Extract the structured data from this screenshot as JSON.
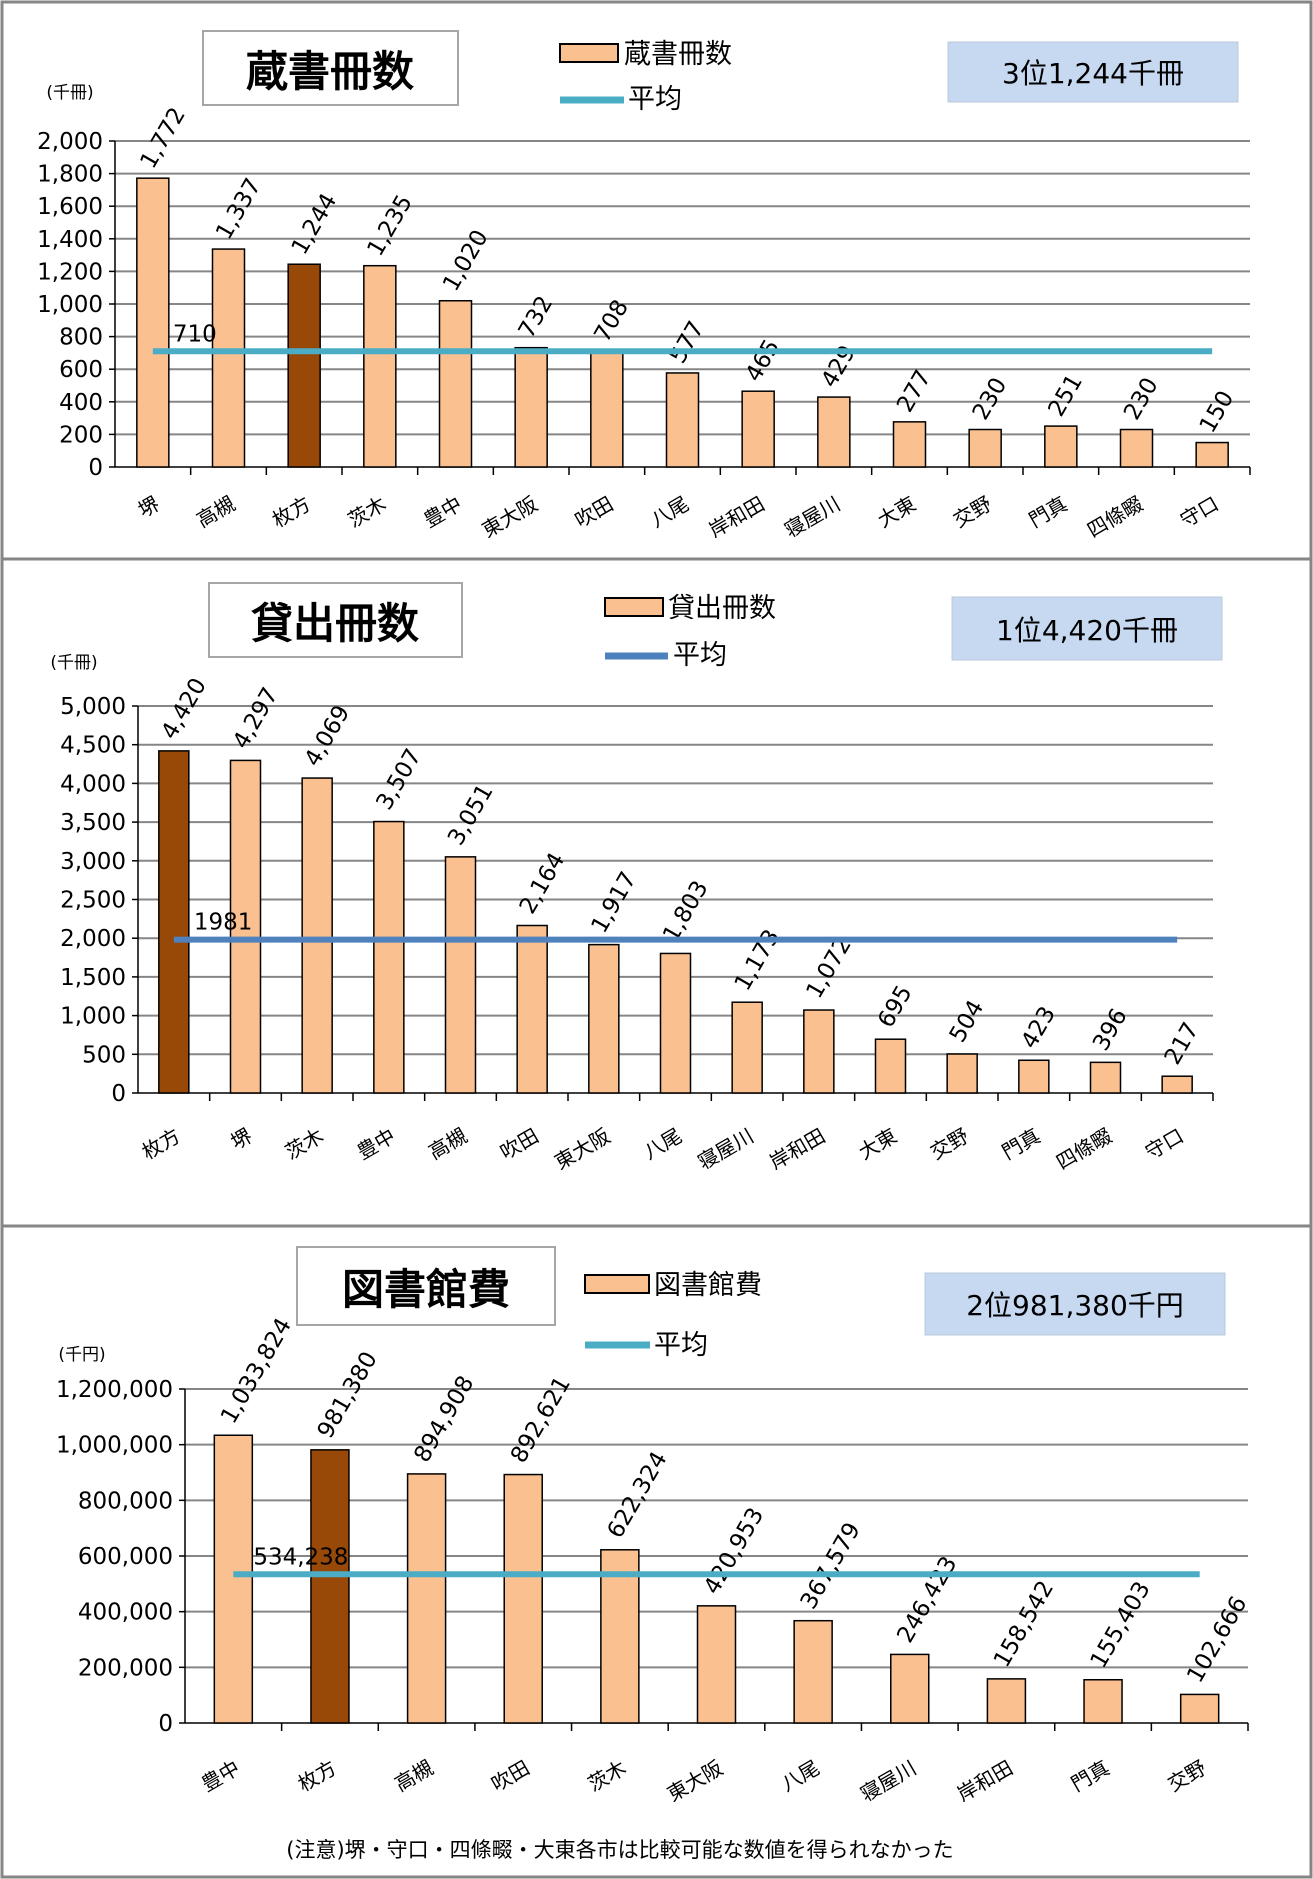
{
  "chart_data": [
    {
      "type": "bar",
      "title": "蔵書冊数",
      "unit": "(千冊)",
      "legend": {
        "bar": "蔵書冊数",
        "line": "平均"
      },
      "rank_badge": "3位1,244千冊",
      "categories": [
        "堺",
        "高槻",
        "枚方",
        "茨木",
        "豊中",
        "東大阪",
        "吹田",
        "八尾",
        "岸和田",
        "寝屋川",
        "大東",
        "交野",
        "門真",
        "四條畷",
        "守口"
      ],
      "values": [
        1772,
        1337,
        1244,
        1235,
        1020,
        732,
        708,
        577,
        465,
        429,
        277,
        230,
        251,
        230,
        150
      ],
      "value_labels": [
        "1,772",
        "1,337",
        "1,244",
        "1,235",
        "1,020",
        "732",
        "708",
        "577",
        "465",
        "429",
        "277",
        "230",
        "251",
        "230",
        "150"
      ],
      "average": 710,
      "average_label": "710",
      "highlight_index": 2,
      "ylim": [
        0,
        2000
      ],
      "yticks": [
        "0",
        "200",
        "400",
        "600",
        "800",
        "1,000",
        "1,200",
        "1,400",
        "1,600",
        "1,800",
        "2,000"
      ],
      "colors": {
        "bar": "#FAC090",
        "highlight": "#984807",
        "line": "#4BACC6",
        "badge": "#C6D9F1",
        "grid": "#868686"
      }
    },
    {
      "type": "bar",
      "title": "貸出冊数",
      "unit": "(千冊)",
      "legend": {
        "bar": "貸出冊数",
        "line": "平均"
      },
      "rank_badge": "1位4,420千冊",
      "categories": [
        "枚方",
        "堺",
        "茨木",
        "豊中",
        "高槻",
        "吹田",
        "東大阪",
        "八尾",
        "寝屋川",
        "岸和田",
        "大東",
        "交野",
        "門真",
        "四條畷",
        "守口"
      ],
      "values": [
        4420,
        4297,
        4069,
        3507,
        3051,
        2164,
        1917,
        1803,
        1173,
        1072,
        695,
        504,
        423,
        396,
        217
      ],
      "value_labels": [
        "4,420",
        "4,297",
        "4,069",
        "3,507",
        "3,051",
        "2,164",
        "1,917",
        "1,803",
        "1,173",
        "1,072",
        "695",
        "504",
        "423",
        "396",
        "217"
      ],
      "average": 1981,
      "average_label": "1981",
      "highlight_index": 0,
      "ylim": [
        0,
        5000
      ],
      "yticks": [
        "0",
        "500",
        "1,000",
        "1,500",
        "2,000",
        "2,500",
        "3,000",
        "3,500",
        "4,000",
        "4,500",
        "5,000"
      ],
      "colors": {
        "bar": "#FAC090",
        "highlight": "#984807",
        "line": "#4F81BD",
        "badge": "#C6D9F1",
        "grid": "#868686"
      }
    },
    {
      "type": "bar",
      "title": "図書館費",
      "unit": "(千円)",
      "legend": {
        "bar": "図書館費",
        "line": "平均"
      },
      "rank_badge": "2位981,380千円",
      "categories": [
        "豊中",
        "枚方",
        "高槻",
        "吹田",
        "茨木",
        "東大阪",
        "八尾",
        "寝屋川",
        "岸和田",
        "門真",
        "交野"
      ],
      "values": [
        1033824,
        981380,
        894908,
        892621,
        622324,
        420953,
        367579,
        246423,
        158542,
        155403,
        102666
      ],
      "value_labels": [
        "1,033,824",
        "981,380",
        "894,908",
        "892,621",
        "622,324",
        "420,953",
        "367,579",
        "246,423",
        "158,542",
        "155,403",
        "102,666"
      ],
      "average": 534238,
      "average_label": "534,238",
      "highlight_index": 1,
      "ylim": [
        0,
        1200000
      ],
      "yticks": [
        "0",
        "200,000",
        "400,000",
        "600,000",
        "800,000",
        "1,000,000",
        "1,200,000"
      ],
      "colors": {
        "bar": "#FAC090",
        "highlight": "#984807",
        "line": "#4BACC6",
        "badge": "#C6D9F1",
        "grid": "#868686"
      }
    }
  ],
  "note": "(注意)堺・守口・四條畷・大東各市は比較可能な数値を得られなかった"
}
